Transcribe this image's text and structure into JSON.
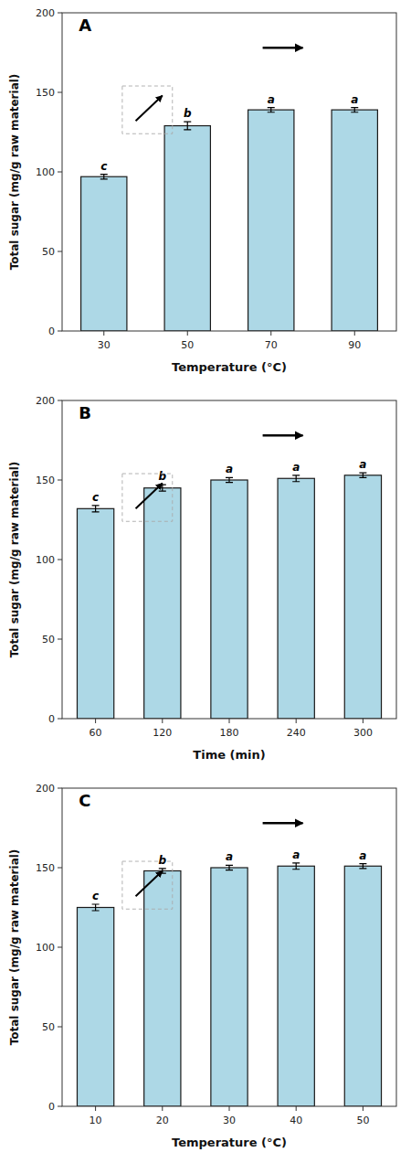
{
  "chart_data": [
    {
      "type": "bar",
      "title": "A",
      "categories": [
        "30",
        "50",
        "70",
        "90"
      ],
      "values": [
        97,
        129,
        139,
        139
      ],
      "errors": [
        1.5,
        2.5,
        1.5,
        1.5
      ],
      "annotations": [
        "c",
        "b",
        "a",
        "a"
      ],
      "x_label": "Temperature (°C)",
      "y_label": "Total sugar (mg/g raw material)",
      "color": "#add8e6",
      "ylim": [
        0,
        200
      ],
      "yticks": [
        0,
        50,
        100,
        150,
        200
      ],
      "grid": false
    },
    {
      "type": "bar",
      "title": "B",
      "categories": [
        "60",
        "120",
        "180",
        "240",
        "300"
      ],
      "values": [
        132,
        145,
        150,
        151,
        153
      ],
      "errors": [
        2.0,
        2.0,
        1.5,
        2.0,
        1.5
      ],
      "annotations": [
        "c",
        "b",
        "a",
        "a",
        "a"
      ],
      "x_label": "Time (min)",
      "y_label": "Total sugar (mg/g raw material)",
      "color": "#add8e6",
      "ylim": [
        0,
        200
      ],
      "yticks": [
        0,
        50,
        100,
        150,
        200
      ],
      "grid": false
    },
    {
      "type": "bar",
      "title": "C",
      "categories": [
        "10",
        "20",
        "30",
        "40",
        "50"
      ],
      "values": [
        125,
        148,
        150,
        151,
        151
      ],
      "errors": [
        2.0,
        1.5,
        1.5,
        2.0,
        1.5
      ],
      "annotations": [
        "c",
        "b",
        "a",
        "a",
        "a"
      ],
      "x_label": "Temperature (°C)",
      "y_label": "Total sugar (mg/g raw material)",
      "color": "#add8e6",
      "ylim": [
        0,
        200
      ],
      "yticks": [
        0,
        50,
        100,
        150,
        200
      ],
      "grid": false
    }
  ]
}
